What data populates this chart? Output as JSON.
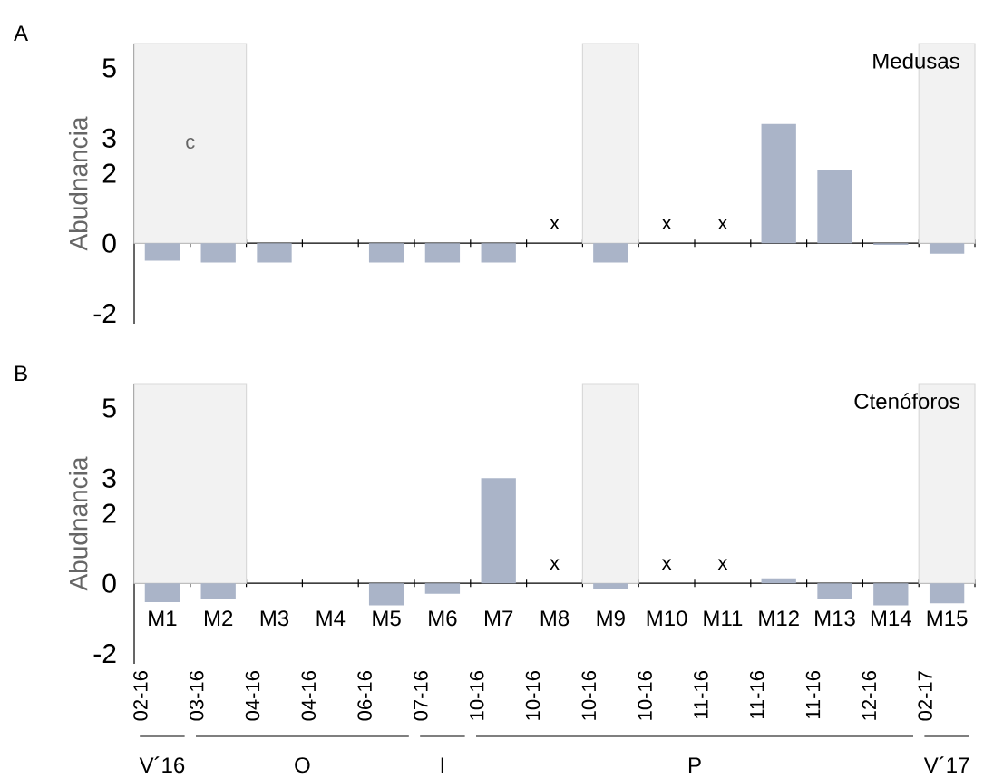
{
  "chart_data": [
    {
      "type": "bar",
      "title": "Medusas",
      "ylabel": "Abudnancia",
      "color": "#aab4c8",
      "categories": [
        "M1",
        "M2",
        "M3",
        "M4",
        "M5",
        "M6",
        "M7",
        "M8",
        "M9",
        "M10",
        "M11",
        "M12",
        "M13",
        "M14",
        "M15"
      ],
      "values": [
        -0.5,
        -0.55,
        -0.55,
        null,
        -0.55,
        -0.55,
        -0.55,
        null,
        -0.55,
        null,
        null,
        3.4,
        2.1,
        -0.05,
        -0.3
      ],
      "value_labels": [
        null,
        null,
        null,
        null,
        null,
        null,
        null,
        "x",
        null,
        "x",
        "x",
        null,
        null,
        null,
        null
      ],
      "ylim": [
        -2.3,
        5.7
      ],
      "yticks": [
        5,
        3,
        2,
        0,
        -2
      ],
      "tick_labels": "y",
      "bands": [
        {
          "axis": "x",
          "from": "M1",
          "to": "M2",
          "color": "#f2f2f2"
        },
        {
          "axis": "x",
          "from": "M9",
          "to": "M9",
          "color": "#f2f2f2"
        },
        {
          "axis": "x",
          "from": "M15",
          "to": "M15",
          "color": "#f2f2f2"
        }
      ],
      "annotations": [
        "A",
        "c"
      ]
    },
    {
      "type": "bar",
      "title": "Ctenóforos",
      "ylabel": "Abudnancia",
      "color": "#aab4c8",
      "categories": [
        "M1",
        "M2",
        "M3",
        "M4",
        "M5",
        "M6",
        "M7",
        "M8",
        "M9",
        "M10",
        "M11",
        "M12",
        "M13",
        "M14",
        "M15"
      ],
      "values": [
        -0.54,
        -0.45,
        null,
        null,
        -0.63,
        -0.3,
        3.0,
        null,
        -0.15,
        null,
        null,
        0.14,
        -0.45,
        -0.63,
        -0.57
      ],
      "value_labels": [
        null,
        null,
        null,
        null,
        null,
        null,
        null,
        "x",
        null,
        "x",
        "x",
        null,
        null,
        null,
        null
      ],
      "ylim": [
        -2.3,
        5.7
      ],
      "yticks": [
        5,
        3,
        2,
        0,
        -2
      ],
      "bands": [
        {
          "axis": "x",
          "from": "M1",
          "to": "M2",
          "color": "#f2f2f2"
        },
        {
          "axis": "x",
          "from": "M9",
          "to": "M9",
          "color": "#f2f2f2"
        },
        {
          "axis": "x",
          "from": "M15",
          "to": "M15",
          "color": "#f2f2f2"
        }
      ],
      "annotations": [
        "B",
        "02-16",
        "03-16",
        "04-16",
        "04-16",
        "06-16",
        "07-16",
        "10-16",
        "10-16",
        "10-16",
        "10-16",
        "11-16",
        "11-16",
        "11-16",
        "12-16",
        "02-17",
        "V´16",
        "O",
        "I",
        "P",
        "V´17"
      ]
    }
  ]
}
